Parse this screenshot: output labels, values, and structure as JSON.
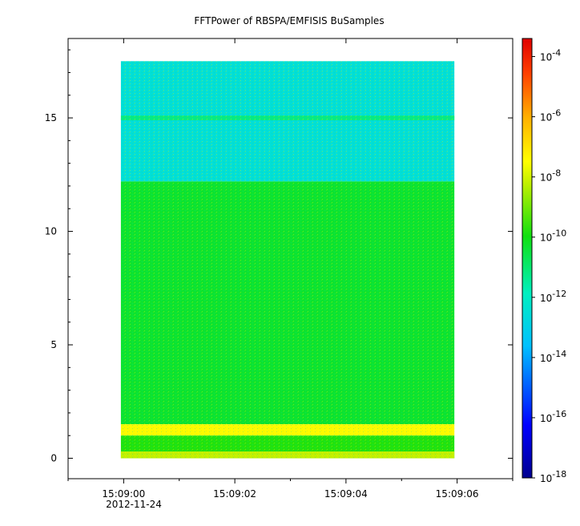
{
  "chart_data": {
    "type": "heatmap",
    "title": "FFTPower of RBSPA/EMFISIS  BuSamples",
    "xlabel": "",
    "ylabel": "",
    "x_ticks": [
      "15:09:00",
      "15:09:02",
      "15:09:04",
      "15:09:06"
    ],
    "x_tick_values_s": [
      0,
      2,
      4,
      6
    ],
    "x_date_label": "2012-11-24",
    "xlim_s": [
      -1,
      7
    ],
    "data_x_range_s": [
      -0.05,
      5.95
    ],
    "y_ticks": [
      0,
      5,
      10,
      15
    ],
    "ylim": [
      -0.9,
      18.5
    ],
    "data_y_range": [
      0,
      17.5
    ],
    "colorbar": {
      "scale": "log",
      "range_exponent": [
        -18,
        -3.4
      ],
      "tick_labels": [
        {
          "base": "10",
          "exp": "-4"
        },
        {
          "base": "10",
          "exp": "-6"
        },
        {
          "base": "10",
          "exp": "-8"
        },
        {
          "base": "10",
          "exp": "-10"
        },
        {
          "base": "10",
          "exp": "-12"
        },
        {
          "base": "10",
          "exp": "-14"
        },
        {
          "base": "10",
          "exp": "-16"
        },
        {
          "base": "10",
          "exp": "-18"
        }
      ],
      "tick_exponents": [
        -4,
        -6,
        -8,
        -10,
        -12,
        -14,
        -16,
        -18
      ],
      "colormap": "rainbow (dark blue to red)"
    },
    "bands": [
      {
        "y_from": 12.2,
        "y_to": 17.5,
        "log_power": -12.5
      },
      {
        "y_from": 14.9,
        "y_to": 15.1,
        "log_power": -11.2
      },
      {
        "y_from": 1.5,
        "y_to": 12.2,
        "log_power": -10.3
      },
      {
        "y_from": 1.0,
        "y_to": 1.5,
        "log_power": -7.4
      },
      {
        "y_from": 0.0,
        "y_to": 1.0,
        "log_power": -9.8
      },
      {
        "y_from": 0.0,
        "y_to": 0.3,
        "log_power": -8.2
      }
    ]
  }
}
